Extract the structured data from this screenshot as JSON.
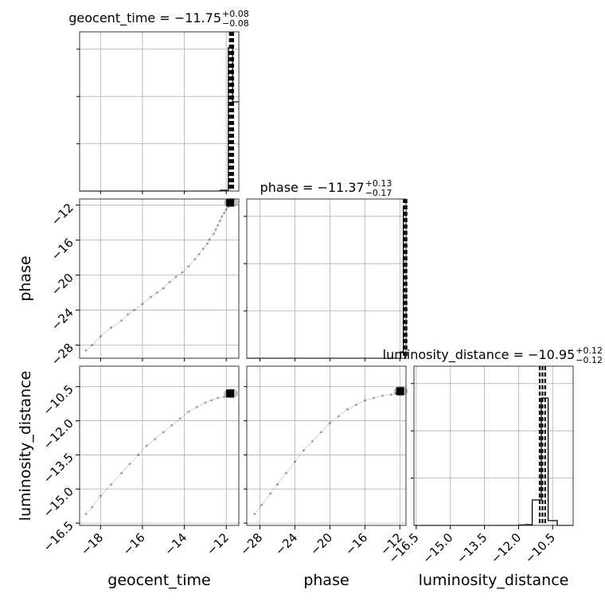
{
  "chart_data": {
    "type": "corner",
    "parameters": [
      "geocent_time",
      "phase",
      "luminosity_distance"
    ],
    "titles": [
      {
        "text": "geocent_time = −11.75",
        "sup": "+0.08",
        "sub": "−0.08"
      },
      {
        "text": "phase = −11.37",
        "sup": "+0.13",
        "sub": "−0.17"
      },
      {
        "text": "luminosity_distance = −10.95",
        "sup": "+0.12",
        "sub": "−0.12"
      }
    ],
    "axes": {
      "geocent_time": {
        "range": [
          -19.0,
          -11.4
        ],
        "ticks": [
          -18,
          -16,
          -14,
          -12
        ],
        "tick_labels": [
          "−18",
          "−16",
          "−14",
          "−12"
        ]
      },
      "phase": {
        "range": [
          -29.5,
          -11.3
        ],
        "ticks": [
          -28,
          -24,
          -20,
          -16,
          -12
        ],
        "tick_labels": [
          "−28",
          "−24",
          "−20",
          "−16",
          "−12"
        ]
      },
      "luminosity_distance": {
        "range": [
          -16.6,
          -9.6
        ],
        "ticks": [
          -16.5,
          -15.0,
          -13.5,
          -12.0,
          -10.5
        ],
        "tick_labels": [
          "−16.5",
          "−15.0",
          "−13.5",
          "−12.0",
          "−10.5"
        ]
      }
    },
    "histograms": {
      "geocent_time": {
        "edges": [
          -19.0,
          -12.3,
          -11.9,
          -11.7,
          -11.4
        ],
        "counts": [
          0.0,
          0.005,
          0.9,
          0.56
        ]
      },
      "phase": {
        "edges": [
          -29.5,
          -11.9,
          -11.6,
          -11.3
        ],
        "counts": [
          0.0,
          0.04,
          0.95
        ]
      },
      "luminosity_distance": {
        "edges": [
          -16.6,
          -12.0,
          -11.7,
          -11.4,
          -11.0,
          -10.7,
          -10.3,
          -9.6
        ],
        "counts": [
          0.0,
          0.003,
          0.005,
          0.16,
          0.8,
          0.03,
          0.0
        ]
      }
    },
    "quantiles": {
      "geocent_time": [
        -11.83,
        -11.75,
        -11.67
      ],
      "phase": [
        -11.54,
        -11.37,
        -11.24
      ],
      "luminosity_distance": [
        -11.07,
        -10.95,
        -10.83
      ]
    },
    "scatter": {
      "phase_vs_geocent_time": [
        [
          -18.7,
          -28.6
        ],
        [
          -18.4,
          -28.0
        ],
        [
          -18.0,
          -27.0
        ],
        [
          -17.5,
          -26.0
        ],
        [
          -17.0,
          -25.2
        ],
        [
          -16.7,
          -24.5
        ],
        [
          -16.4,
          -24.0
        ],
        [
          -16.0,
          -23.3
        ],
        [
          -15.6,
          -22.5
        ],
        [
          -15.3,
          -22.0
        ],
        [
          -15.0,
          -21.5
        ],
        [
          -14.7,
          -20.8
        ],
        [
          -14.4,
          -20.2
        ],
        [
          -14.1,
          -19.7
        ],
        [
          -13.8,
          -19.0
        ],
        [
          -13.5,
          -18.2
        ],
        [
          -13.3,
          -17.6
        ],
        [
          -13.1,
          -17.0
        ],
        [
          -12.9,
          -16.4
        ],
        [
          -12.8,
          -15.9
        ],
        [
          -12.6,
          -15.3
        ],
        [
          -12.5,
          -14.8
        ],
        [
          -12.4,
          -14.3
        ],
        [
          -12.3,
          -13.8
        ],
        [
          -12.2,
          -13.3
        ],
        [
          -12.1,
          -12.9
        ],
        [
          -12.0,
          -12.5
        ],
        [
          -11.9,
          -12.2
        ],
        [
          -11.8,
          -11.9
        ],
        [
          -11.7,
          -11.7
        ]
      ],
      "luminosity_distance_vs_geocent_time": [
        [
          -18.7,
          -16.1
        ],
        [
          -18.4,
          -15.8
        ],
        [
          -18.0,
          -15.3
        ],
        [
          -17.5,
          -14.8
        ],
        [
          -17.0,
          -14.3
        ],
        [
          -16.6,
          -13.9
        ],
        [
          -16.2,
          -13.5
        ],
        [
          -15.8,
          -13.1
        ],
        [
          -15.4,
          -12.8
        ],
        [
          -15.0,
          -12.5
        ],
        [
          -14.6,
          -12.2
        ],
        [
          -14.2,
          -11.9
        ],
        [
          -13.8,
          -11.6
        ],
        [
          -13.4,
          -11.4
        ],
        [
          -13.0,
          -11.2
        ],
        [
          -12.7,
          -11.1
        ],
        [
          -12.4,
          -11.0
        ],
        [
          -12.1,
          -10.95
        ],
        [
          -11.9,
          -10.9
        ],
        [
          -11.7,
          -10.8
        ]
      ],
      "luminosity_distance_vs_phase": [
        [
          -28.6,
          -16.1
        ],
        [
          -27.8,
          -15.7
        ],
        [
          -26.8,
          -15.2
        ],
        [
          -26.0,
          -14.8
        ],
        [
          -25.0,
          -14.3
        ],
        [
          -24.0,
          -13.8
        ],
        [
          -23.0,
          -13.3
        ],
        [
          -22.0,
          -12.9
        ],
        [
          -21.0,
          -12.5
        ],
        [
          -20.0,
          -12.1
        ],
        [
          -19.0,
          -11.8
        ],
        [
          -18.0,
          -11.5
        ],
        [
          -17.0,
          -11.3
        ],
        [
          -16.0,
          -11.1
        ],
        [
          -15.0,
          -11.0
        ],
        [
          -14.0,
          -10.9
        ],
        [
          -13.0,
          -10.85
        ],
        [
          -12.5,
          -10.8
        ],
        [
          -12.0,
          -10.75
        ],
        [
          -11.7,
          -10.7
        ]
      ]
    },
    "grid": true,
    "legend": "none"
  }
}
